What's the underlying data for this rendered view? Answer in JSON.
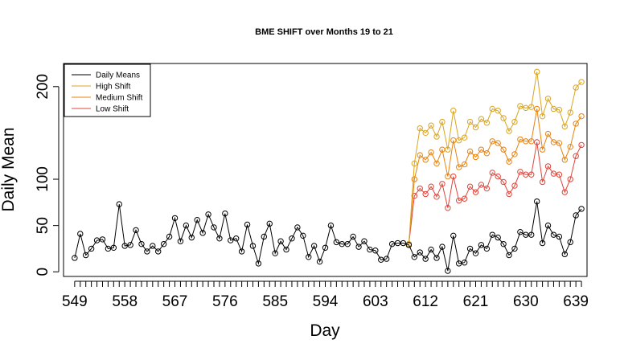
{
  "chart_data": {
    "type": "line",
    "title": "BME SHIFT over Months 19 to 21",
    "xlabel": "Day",
    "ylabel": "Daily Mean",
    "xlim": [
      547,
      641
    ],
    "ylim": [
      -5,
      225
    ],
    "x_start": 549,
    "x_end": 640,
    "x_ticks": [
      549,
      558,
      567,
      576,
      585,
      594,
      603,
      612,
      621,
      630,
      639
    ],
    "y_ticks": [
      0,
      50,
      100,
      200
    ],
    "legend_position": "top-left",
    "legend": [
      {
        "name": "Daily Means",
        "color": "#000000"
      },
      {
        "name": "High Shift",
        "color": "#DAA520"
      },
      {
        "name": "Medium Shift",
        "color": "#E8820C"
      },
      {
        "name": "Low Shift",
        "color": "#E0443A"
      }
    ],
    "daily_means": [
      15,
      41,
      18,
      25,
      34,
      35,
      25,
      26,
      73,
      28,
      29,
      45,
      30,
      22,
      28,
      22,
      30,
      38,
      58,
      33,
      50,
      37,
      56,
      42,
      62,
      48,
      36,
      63,
      34,
      36,
      22,
      51,
      28,
      9,
      38,
      52,
      20,
      33,
      24,
      36,
      48,
      39,
      16,
      28,
      11,
      26,
      50,
      32,
      30,
      30,
      38,
      27,
      33,
      24,
      23,
      13,
      14,
      30,
      31,
      31,
      29,
      16,
      21,
      14,
      24,
      15,
      27,
      1,
      39,
      9,
      10,
      25,
      20,
      29,
      25,
      40,
      37,
      30,
      18,
      25,
      43,
      40,
      40,
      76,
      31,
      50,
      40,
      38,
      19,
      32,
      61,
      68
    ],
    "shift_start_day": 609,
    "series": [
      {
        "name": "High Shift",
        "values": [
          30,
          117,
          155,
          150,
          158,
          146,
          162,
          132,
          174,
          142,
          145,
          162,
          156,
          165,
          161,
          176,
          174,
          166,
          152,
          162,
          179,
          177,
          178,
          216,
          168,
          187,
          176,
          175,
          157,
          172,
          199,
          205
        ]
      },
      {
        "name": "Medium Shift",
        "values": [
          30,
          100,
          126,
          121,
          129,
          117,
          132,
          103,
          142,
          113,
          116,
          130,
          124,
          132,
          128,
          141,
          139,
          132,
          119,
          127,
          143,
          141,
          141,
          176,
          132,
          149,
          140,
          139,
          121,
          135,
          160,
          168
        ]
      },
      {
        "name": "Low Shift",
        "values": [
          30,
          82,
          90,
          84,
          92,
          81,
          95,
          69,
          103,
          77,
          79,
          92,
          86,
          94,
          90,
          107,
          103,
          97,
          84,
          93,
          108,
          105,
          105,
          140,
          97,
          114,
          106,
          105,
          86,
          100,
          125,
          137
        ]
      }
    ]
  }
}
